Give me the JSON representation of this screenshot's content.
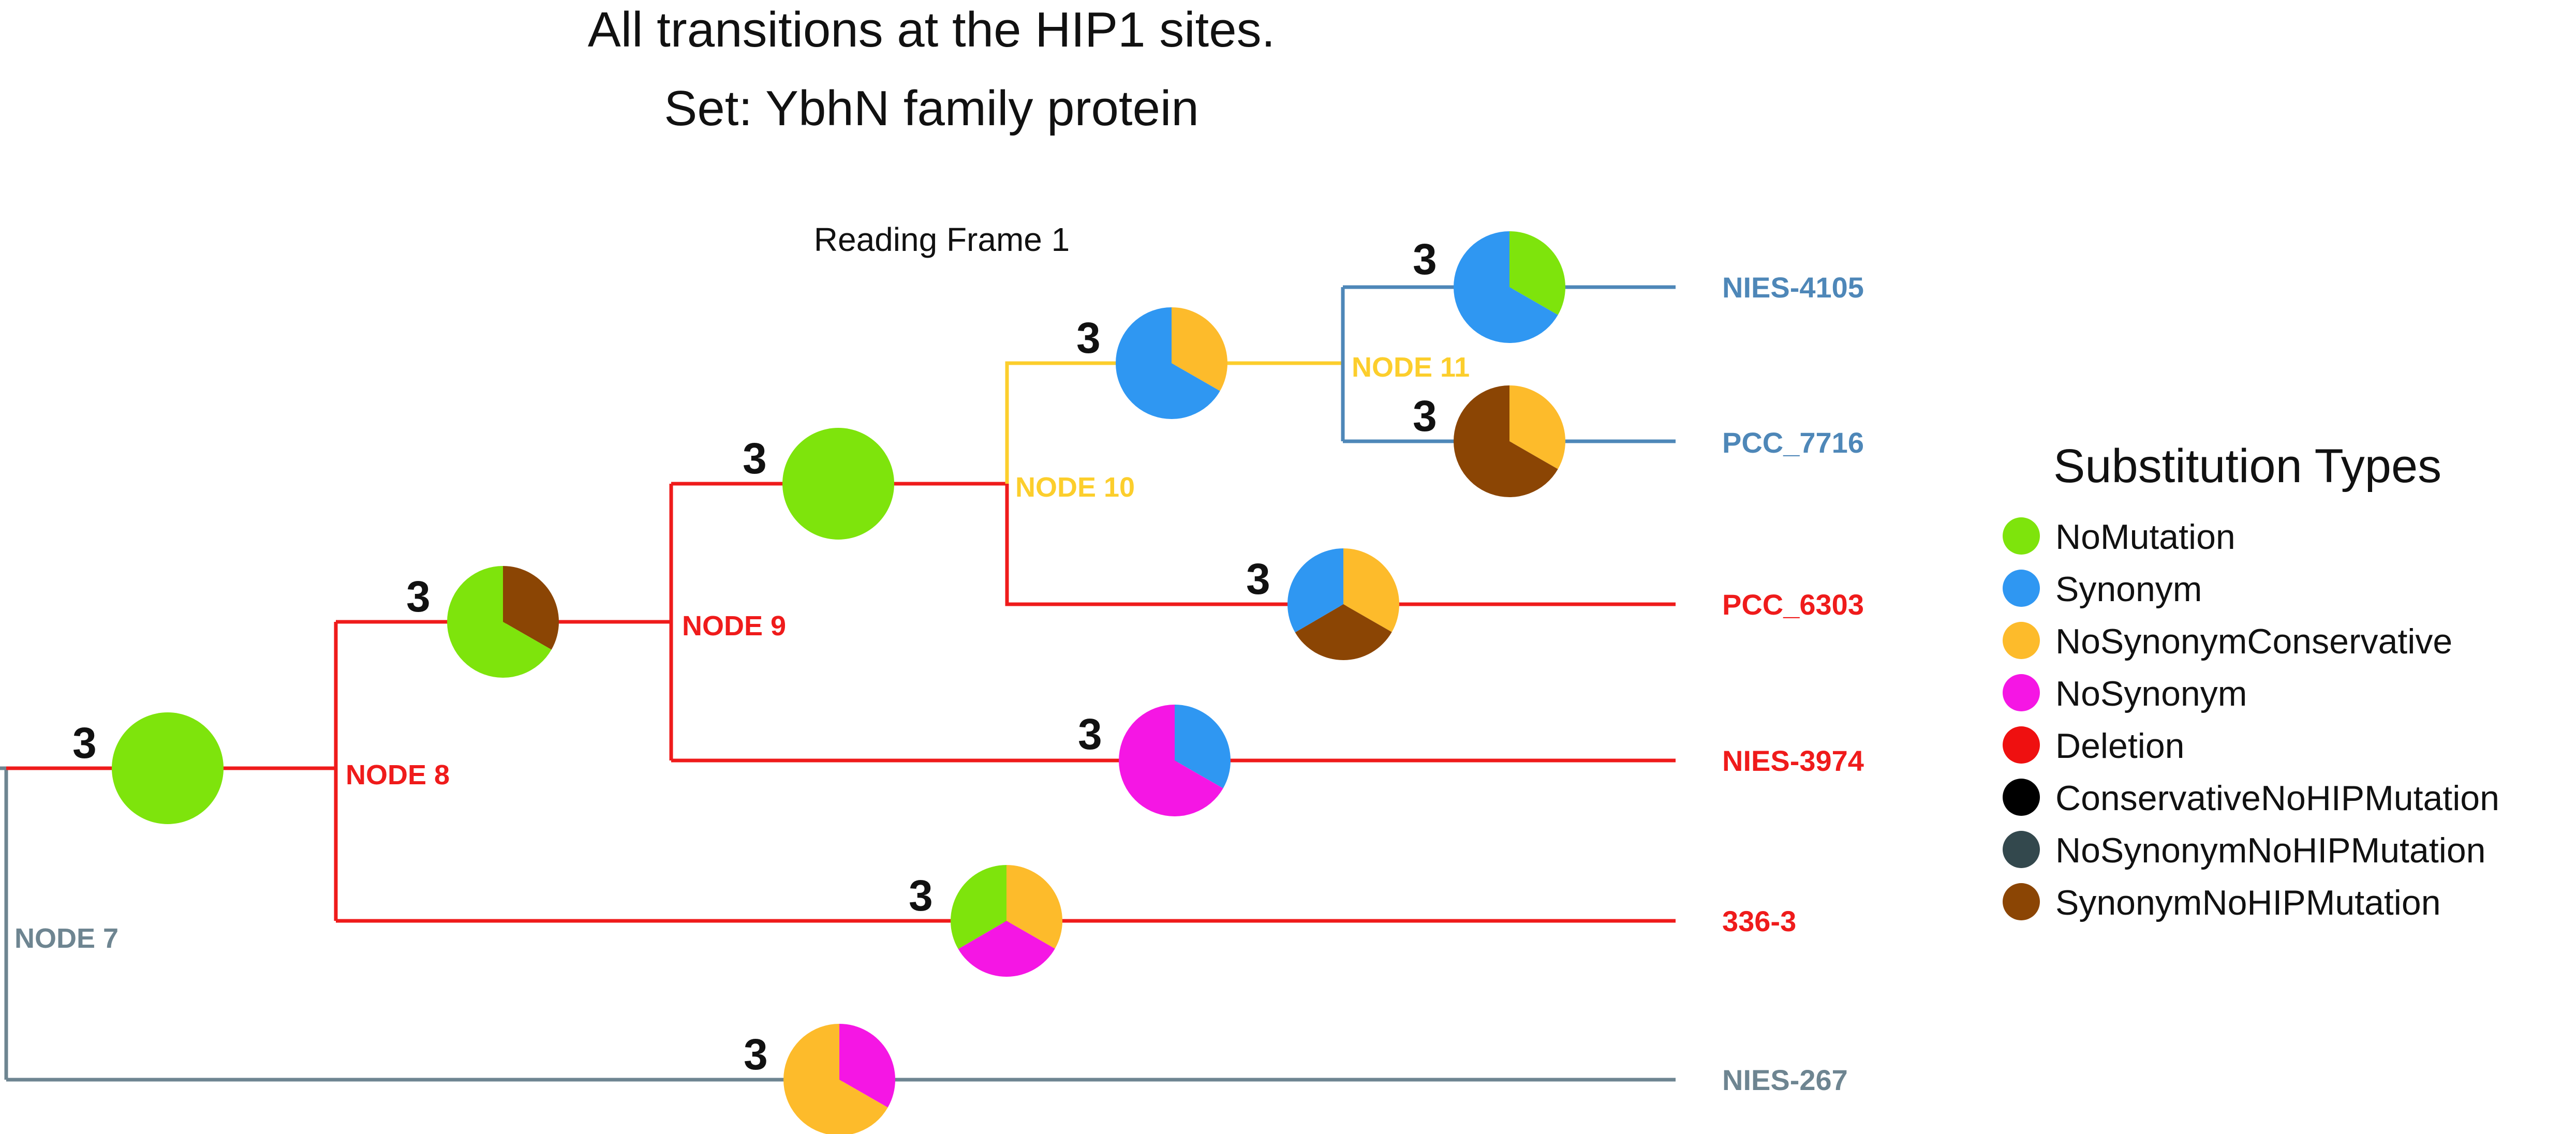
{
  "title": {
    "line1": "All transitions at the HIP1 sites.",
    "line2": "Set: YbhN family protein"
  },
  "subtitle": "Reading Frame 1",
  "colors": {
    "grey": "#6e8591",
    "red": "#ef1b1b",
    "yellow": "#fcce2c",
    "blue": "#4e87b8",
    "NoMutation": "#7ee40c",
    "Synonym": "#2f97f2",
    "NoSynonymConservative": "#fdbb2b",
    "NoSynonym": "#f516e4",
    "Deletion": "#ef1010",
    "ConservativeNoHIPMutation": "#000000",
    "NoSynonymNoHIPMutation": "#33484d",
    "SynonymNoHIPMutation": "#8b4504"
  },
  "legend": {
    "title": "Substitution Types",
    "items": [
      {
        "key": "NoMutation",
        "label": "NoMutation"
      },
      {
        "key": "Synonym",
        "label": "Synonym"
      },
      {
        "key": "NoSynonymConservative",
        "label": "NoSynonymConservative"
      },
      {
        "key": "NoSynonym",
        "label": "NoSynonym"
      },
      {
        "key": "Deletion",
        "label": "Deletion"
      },
      {
        "key": "ConservativeNoHIPMutation",
        "label": "ConservativeNoHIPMutation"
      },
      {
        "key": "NoSynonymNoHIPMutation",
        "label": "NoSynonymNoHIPMutation"
      },
      {
        "key": "SynonymNoHIPMutation",
        "label": "SynonymNoHIPMutation"
      }
    ]
  },
  "node_labels": {
    "n7": "NODE 7",
    "n8": "NODE 8",
    "n9": "NODE 9",
    "n10": "NODE 10",
    "n11": "NODE 11"
  },
  "leaves": {
    "nies4105": "NIES-4105",
    "pcc7716": "PCC_7716",
    "pcc6303": "PCC_6303",
    "nies3974": "NIES-3974",
    "s3363": "336-3",
    "nies267": "NIES-267"
  },
  "pies": {
    "n7": {
      "count": "3",
      "fractions": {
        "NoMutation": 1
      }
    },
    "n8": {
      "count": "3",
      "fractions": {
        "SynonymNoHIPMutation": 0.333,
        "NoMutation": 0.667
      }
    },
    "n9": {
      "count": "3",
      "fractions": {
        "NoMutation": 1
      }
    },
    "n10": {
      "count": "3",
      "fractions": {
        "NoSynonymConservative": 0.333,
        "Synonym": 0.667
      }
    },
    "nies4105": {
      "count": "3",
      "fractions": {
        "NoMutation": 0.333,
        "Synonym": 0.667
      }
    },
    "pcc7716": {
      "count": "3",
      "fractions": {
        "NoSynonymConservative": 0.333,
        "SynonymNoHIPMutation": 0.667
      }
    },
    "pcc6303": {
      "count": "3",
      "fractions": {
        "NoSynonymConservative": 0.333,
        "SynonymNoHIPMutation": 0.333,
        "Synonym": 0.334
      }
    },
    "nies3974": {
      "count": "3",
      "fractions": {
        "Synonym": 0.333,
        "NoSynonym": 0.667
      }
    },
    "s3363": {
      "count": "3",
      "fractions": {
        "NoSynonymConservative": 0.333,
        "NoSynonym": 0.333,
        "NoMutation": 0.334
      }
    },
    "nies267": {
      "count": "3",
      "fractions": {
        "NoSynonym": 0.333,
        "NoSynonymConservative": 0.667
      }
    }
  }
}
